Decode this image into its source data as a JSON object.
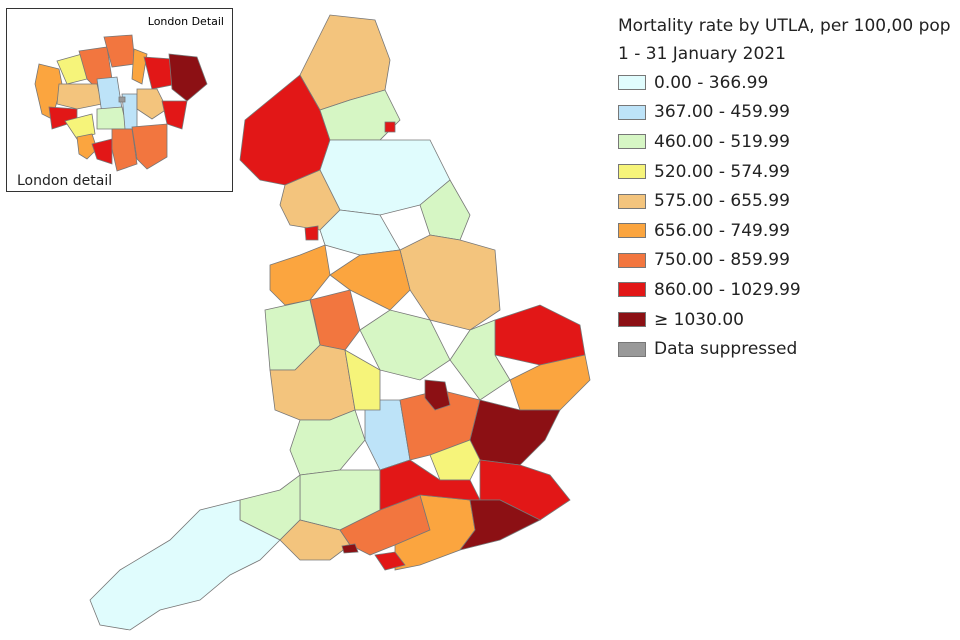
{
  "legend": {
    "title": "Mortality rate by UTLA, per 100,00 pop",
    "subtitle": "1 - 31 January 2021",
    "classes": [
      {
        "label": "0.00 - 366.99",
        "color": "#e0fcfd"
      },
      {
        "label": "367.00 - 459.99",
        "color": "#bde3f8"
      },
      {
        "label": "460.00 - 519.99",
        "color": "#d6f6c4"
      },
      {
        "label": "520.00 - 574.99",
        "color": "#f6f47a"
      },
      {
        "label": "575.00 - 655.99",
        "color": "#f3c47d"
      },
      {
        "label": "656.00 - 749.99",
        "color": "#fba53f"
      },
      {
        "label": "750.00 - 859.99",
        "color": "#f2763f"
      },
      {
        "label": "860.00 - 1029.99",
        "color": "#e21717"
      },
      {
        "label": "≥ 1030.00",
        "color": "#8c1014"
      },
      {
        "label": "Data suppressed",
        "color": "#999999"
      }
    ]
  },
  "inset": {
    "title": "London Detail",
    "label": "London detail"
  }
}
